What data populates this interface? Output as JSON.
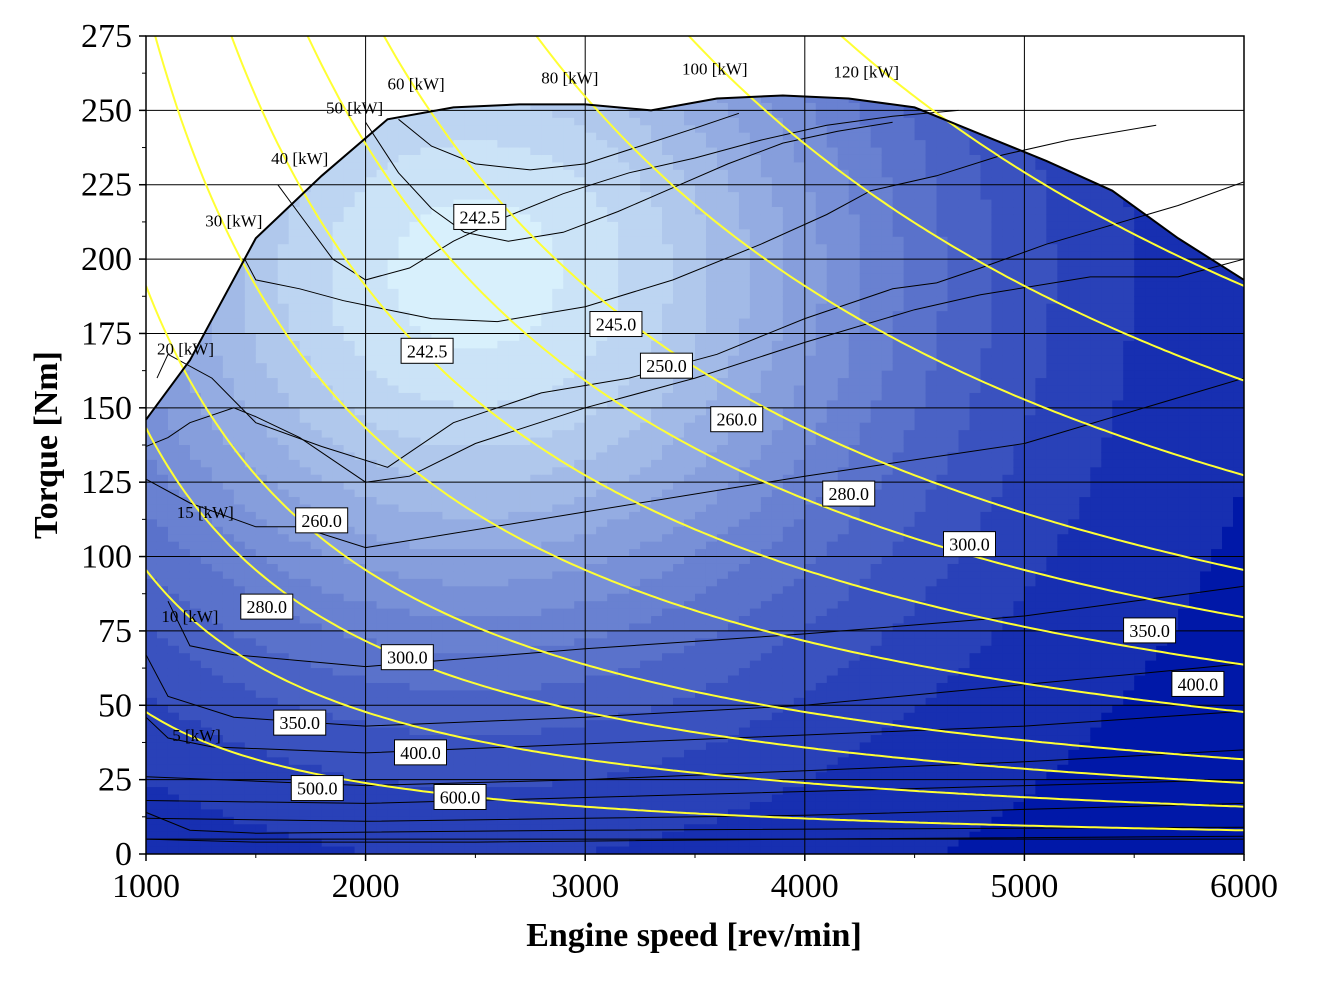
{
  "chart_data": {
    "type": "contour",
    "xlabel": "Engine speed [rev/min]",
    "ylabel": "Torque [Nm]",
    "xlim": [
      1000,
      6000
    ],
    "ylim": [
      0,
      275
    ],
    "x_ticks": [
      1000,
      2000,
      3000,
      4000,
      5000,
      6000
    ],
    "y_ticks": [
      0,
      25,
      50,
      75,
      100,
      125,
      150,
      175,
      200,
      225,
      250,
      275
    ],
    "grid": true,
    "colors": {
      "outline": "#000000",
      "power_lines": "#ffff33",
      "fill_low": "#0018a8",
      "fill_high": "#d8f0fc"
    },
    "full_load_curve": [
      [
        1000,
        146
      ],
      [
        1200,
        166
      ],
      [
        1500,
        207
      ],
      [
        1800,
        228
      ],
      [
        2100,
        247
      ],
      [
        2400,
        251
      ],
      [
        2700,
        252
      ],
      [
        3000,
        252
      ],
      [
        3300,
        250
      ],
      [
        3600,
        254
      ],
      [
        3900,
        255
      ],
      [
        4200,
        254
      ],
      [
        4500,
        251
      ],
      [
        4800,
        242
      ],
      [
        5100,
        233
      ],
      [
        5400,
        223
      ],
      [
        5700,
        207
      ],
      [
        6000,
        193
      ]
    ],
    "power_lines": [
      {
        "label": "5 [kW]",
        "kw": 5,
        "label_at": [
          1230,
          38
        ]
      },
      {
        "label": "10 [kW]",
        "kw": 10,
        "label_at": [
          1200,
          78
        ]
      },
      {
        "label": "15 [kW]",
        "kw": 15,
        "label_at": [
          1270,
          113
        ]
      },
      {
        "label": "20 [kW]",
        "kw": 20,
        "label_at": [
          1180,
          168
        ]
      },
      {
        "label": "30 [kW]",
        "kw": 30,
        "label_at": [
          1400,
          211
        ]
      },
      {
        "label": "40 [kW]",
        "kw": 40,
        "label_at": [
          1700,
          232
        ]
      },
      {
        "label": "50 [kW]",
        "kw": 50,
        "label_at": [
          1950,
          249
        ]
      },
      {
        "label": "60 [kW]",
        "kw": 60,
        "label_at": [
          2230,
          257
        ]
      },
      {
        "label": "80 [kW]",
        "kw": 80,
        "label_at": [
          2930,
          259
        ]
      },
      {
        "label": "100 [kW]",
        "kw": 100,
        "label_at": [
          3590,
          262
        ]
      },
      {
        "label": "120 [kW]",
        "kw": 120,
        "label_at": [
          4280,
          261
        ]
      }
    ],
    "bsfc_labels": [
      {
        "text": "242.5",
        "at": [
          2520,
          214
        ]
      },
      {
        "text": "242.5",
        "at": [
          2280,
          169
        ]
      },
      {
        "text": "245.0",
        "at": [
          3140,
          178
        ]
      },
      {
        "text": "250.0",
        "at": [
          3370,
          164
        ]
      },
      {
        "text": "260.0",
        "at": [
          3690,
          146
        ]
      },
      {
        "text": "280.0",
        "at": [
          4200,
          121
        ]
      },
      {
        "text": "300.0",
        "at": [
          4750,
          104
        ]
      },
      {
        "text": "350.0",
        "at": [
          5570,
          75
        ]
      },
      {
        "text": "400.0",
        "at": [
          5790,
          57
        ]
      },
      {
        "text": "260.0",
        "at": [
          1800,
          112
        ]
      },
      {
        "text": "280.0",
        "at": [
          1550,
          83
        ]
      },
      {
        "text": "300.0",
        "at": [
          2190,
          66
        ]
      },
      {
        "text": "350.0",
        "at": [
          1700,
          44
        ]
      },
      {
        "text": "400.0",
        "at": [
          2250,
          34
        ]
      },
      {
        "text": "500.0",
        "at": [
          1780,
          22
        ]
      },
      {
        "text": "600.0",
        "at": [
          2430,
          19
        ]
      }
    ],
    "bsfc_contours": [
      [
        [
          1000,
          5
        ],
        [
          6000,
          5
        ]
      ],
      [
        [
          1000,
          12
        ],
        [
          2000,
          11
        ],
        [
          3000,
          12
        ],
        [
          4000,
          13
        ],
        [
          5000,
          15
        ],
        [
          6000,
          17
        ]
      ],
      [
        [
          1000,
          18
        ],
        [
          2000,
          17
        ],
        [
          3000,
          19
        ],
        [
          4000,
          21
        ],
        [
          5000,
          23
        ],
        [
          6000,
          25
        ]
      ],
      [
        [
          1000,
          26
        ],
        [
          2000,
          23
        ],
        [
          3000,
          25
        ],
        [
          4000,
          28
        ],
        [
          5000,
          31
        ],
        [
          6000,
          35
        ]
      ],
      [
        [
          1000,
          46
        ],
        [
          1100,
          39
        ],
        [
          1300,
          36
        ],
        [
          2000,
          34
        ],
        [
          3000,
          37
        ],
        [
          4000,
          40
        ],
        [
          5000,
          43
        ],
        [
          6000,
          48
        ]
      ],
      [
        [
          1000,
          67
        ],
        [
          1100,
          53
        ],
        [
          1400,
          46
        ],
        [
          2000,
          43
        ],
        [
          3000,
          46
        ],
        [
          4000,
          50
        ],
        [
          5000,
          57
        ],
        [
          6000,
          64
        ]
      ],
      [
        [
          1100,
          85
        ],
        [
          1200,
          70
        ],
        [
          1400,
          67
        ],
        [
          2000,
          63
        ],
        [
          3000,
          69
        ],
        [
          4000,
          74
        ],
        [
          5000,
          80
        ],
        [
          5800,
          88
        ],
        [
          6000,
          90
        ]
      ],
      [
        [
          1000,
          126
        ],
        [
          1200,
          118
        ],
        [
          1500,
          110
        ],
        [
          1700,
          110
        ],
        [
          2000,
          103
        ],
        [
          3000,
          115
        ],
        [
          4000,
          127
        ],
        [
          5000,
          138
        ],
        [
          6000,
          160
        ]
      ],
      [
        [
          1000,
          137
        ],
        [
          1100,
          140
        ],
        [
          1200,
          145
        ],
        [
          1400,
          150
        ],
        [
          1500,
          147
        ],
        [
          1700,
          140
        ],
        [
          2000,
          125
        ],
        [
          2200,
          127
        ],
        [
          2500,
          138
        ],
        [
          3000,
          150
        ],
        [
          3500,
          160
        ],
        [
          4000,
          172
        ],
        [
          4500,
          183
        ],
        [
          4800,
          188
        ],
        [
          5300,
          194
        ],
        [
          5700,
          194
        ],
        [
          6000,
          200
        ]
      ],
      [
        [
          1050,
          160
        ],
        [
          1100,
          168
        ],
        [
          1300,
          160
        ],
        [
          1500,
          145
        ],
        [
          1800,
          137
        ],
        [
          2100,
          130
        ],
        [
          2400,
          145
        ],
        [
          2800,
          155
        ],
        [
          3200,
          160
        ],
        [
          3600,
          168
        ],
        [
          4000,
          180
        ],
        [
          4400,
          190
        ],
        [
          4600,
          192
        ],
        [
          4800,
          197
        ],
        [
          5100,
          205
        ],
        [
          5700,
          218
        ],
        [
          6000,
          226
        ]
      ],
      [
        [
          1450,
          200
        ],
        [
          1500,
          193
        ],
        [
          1700,
          190
        ],
        [
          1900,
          186
        ],
        [
          2100,
          183
        ],
        [
          2300,
          180
        ],
        [
          2600,
          179
        ],
        [
          3000,
          184
        ],
        [
          3400,
          193
        ],
        [
          3800,
          205
        ],
        [
          4100,
          215
        ],
        [
          4300,
          223
        ],
        [
          4600,
          228
        ],
        [
          4900,
          235
        ],
        [
          5200,
          240
        ],
        [
          5600,
          245
        ]
      ],
      [
        [
          1600,
          225
        ],
        [
          1700,
          215
        ],
        [
          1850,
          200
        ],
        [
          2000,
          193
        ],
        [
          2200,
          197
        ],
        [
          2400,
          206
        ],
        [
          2600,
          213
        ],
        [
          2900,
          222
        ],
        [
          3200,
          229
        ],
        [
          3500,
          234
        ],
        [
          3800,
          240
        ],
        [
          4100,
          245
        ],
        [
          4400,
          248
        ],
        [
          4700,
          250
        ]
      ],
      [
        [
          2000,
          246
        ],
        [
          2150,
          229
        ],
        [
          2300,
          217
        ],
        [
          2450,
          209
        ],
        [
          2650,
          206
        ],
        [
          2900,
          209
        ],
        [
          3150,
          216
        ],
        [
          3400,
          224
        ],
        [
          3650,
          232
        ],
        [
          3900,
          239
        ],
        [
          4150,
          243
        ],
        [
          4400,
          246
        ]
      ],
      [
        [
          2150,
          247
        ],
        [
          2300,
          238
        ],
        [
          2500,
          232
        ],
        [
          2750,
          230
        ],
        [
          3000,
          232
        ],
        [
          3250,
          238
        ],
        [
          3500,
          244
        ],
        [
          3700,
          249
        ]
      ],
      [
        [
          1000,
          5
        ],
        [
          1500,
          4
        ],
        [
          2500,
          4
        ],
        [
          4000,
          5
        ],
        [
          6000,
          6
        ]
      ],
      [
        [
          1000,
          14
        ],
        [
          1200,
          8
        ],
        [
          1500,
          7
        ],
        [
          3000,
          8
        ],
        [
          6000,
          9
        ]
      ]
    ]
  }
}
